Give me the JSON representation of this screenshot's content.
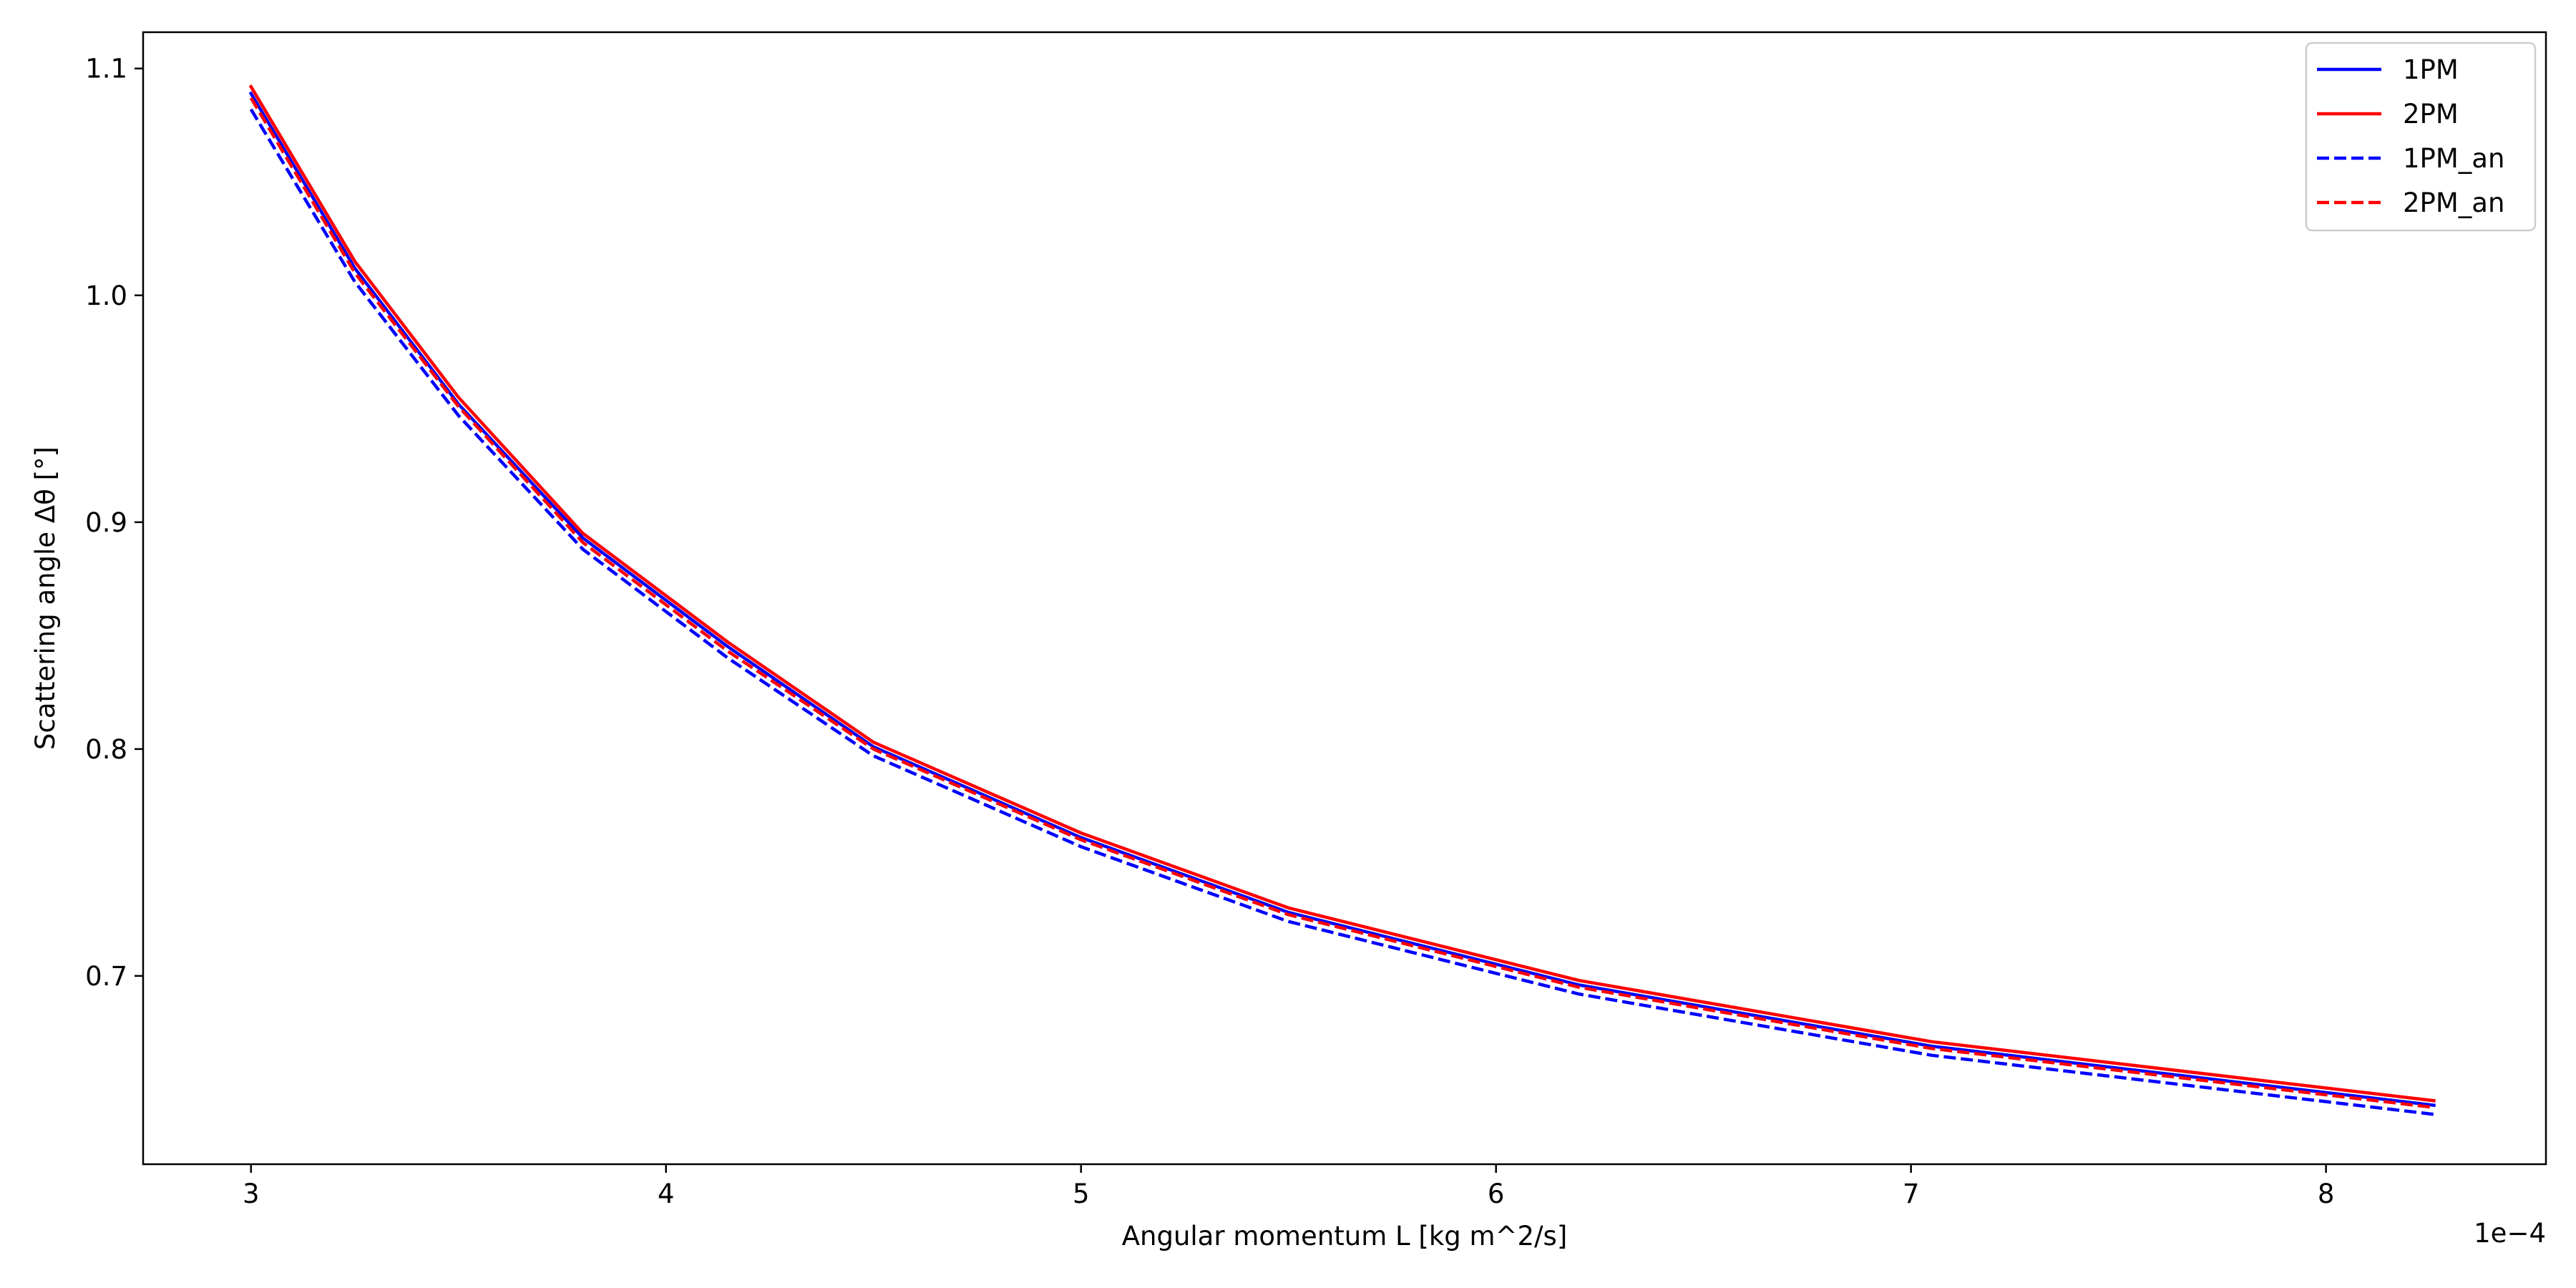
{
  "chart_data": {
    "type": "line",
    "title": "",
    "xlabel": "Angular momentum L [kg m^2/s]",
    "ylabel": "Scattering angle Δθ [°]",
    "x_offset_label": "1e−4",
    "xlim": [
      2.74,
      8.53
    ],
    "ylim": [
      0.617,
      1.116
    ],
    "x_ticks": [
      3,
      4,
      5,
      6,
      7,
      8
    ],
    "x_tick_labels": [
      "3",
      "4",
      "5",
      "6",
      "7",
      "8"
    ],
    "y_ticks": [
      0.7,
      0.8,
      0.9,
      1.0,
      1.1
    ],
    "y_tick_labels": [
      "0.7",
      "0.8",
      "0.9",
      "1.0",
      "1.1"
    ],
    "grid": false,
    "legend_position": "top-right",
    "series": [
      {
        "name": "1PM",
        "color": "#0000ff",
        "style": "solid",
        "x": [
          3.0,
          3.25,
          3.5,
          3.8,
          4.15,
          4.5,
          5.0,
          5.5,
          6.2,
          7.05,
          8.26
        ],
        "y": [
          1.089,
          1.012,
          0.952,
          0.893,
          0.845,
          0.801,
          0.761,
          0.728,
          0.696,
          0.669,
          0.643
        ]
      },
      {
        "name": "2PM",
        "color": "#ff0000",
        "style": "solid",
        "x": [
          3.0,
          3.25,
          3.5,
          3.8,
          4.15,
          4.5,
          5.0,
          5.5,
          6.2,
          7.05,
          8.26
        ],
        "y": [
          1.092,
          1.015,
          0.955,
          0.895,
          0.847,
          0.803,
          0.763,
          0.73,
          0.698,
          0.671,
          0.645
        ]
      },
      {
        "name": "1PM_an",
        "color": "#0000ff",
        "style": "dashed",
        "x": [
          3.0,
          3.25,
          3.5,
          3.8,
          4.15,
          4.5,
          5.0,
          5.5,
          6.2,
          7.05,
          8.26
        ],
        "y": [
          1.082,
          1.006,
          0.947,
          0.888,
          0.84,
          0.797,
          0.757,
          0.724,
          0.692,
          0.665,
          0.639
        ]
      },
      {
        "name": "2PM_an",
        "color": "#ff0000",
        "style": "dashed",
        "x": [
          3.0,
          3.25,
          3.5,
          3.8,
          4.15,
          4.5,
          5.0,
          5.5,
          6.2,
          7.05,
          8.26
        ],
        "y": [
          1.087,
          1.01,
          0.951,
          0.891,
          0.843,
          0.8,
          0.76,
          0.727,
          0.695,
          0.668,
          0.642
        ]
      }
    ]
  }
}
